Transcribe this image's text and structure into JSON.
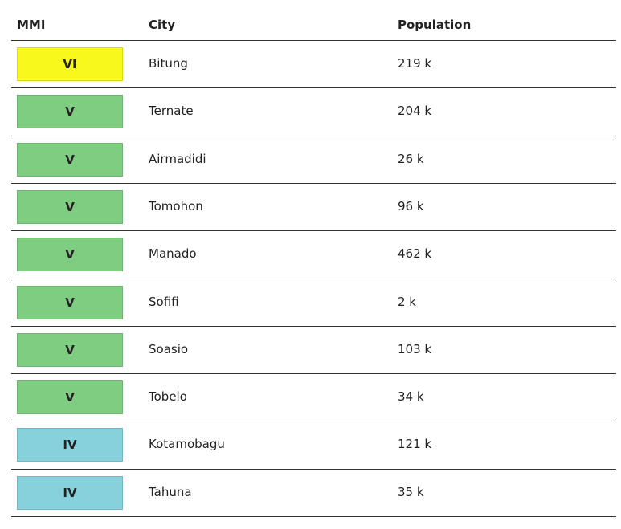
{
  "table": {
    "header": [
      "MMI",
      "City",
      "Population"
    ],
    "rows": [
      {
        "mmi": "VI",
        "city": "Bitung",
        "population": "219 k",
        "color": "#f8f81c"
      },
      {
        "mmi": "V",
        "city": "Ternate",
        "population": "204 k",
        "color": "#7fcd80"
      },
      {
        "mmi": "V",
        "city": "Airmadidi",
        "population": "26 k",
        "color": "#7fcd80"
      },
      {
        "mmi": "V",
        "city": "Tomohon",
        "population": "96 k",
        "color": "#7fcd80"
      },
      {
        "mmi": "V",
        "city": "Manado",
        "population": "462 k",
        "color": "#7fcd80"
      },
      {
        "mmi": "V",
        "city": "Sofifi",
        "population": "2 k",
        "color": "#7fcd80"
      },
      {
        "mmi": "V",
        "city": "Soasio",
        "population": "103 k",
        "color": "#7fcd80"
      },
      {
        "mmi": "V",
        "city": "Tobelo",
        "population": "34 k",
        "color": "#7fcd80"
      },
      {
        "mmi": "IV",
        "city": "Kotamobagu",
        "population": "121 k",
        "color": "#87d1dd"
      },
      {
        "mmi": "IV",
        "city": "Tahuna",
        "population": "35 k",
        "color": "#87d1dd"
      }
    ]
  }
}
